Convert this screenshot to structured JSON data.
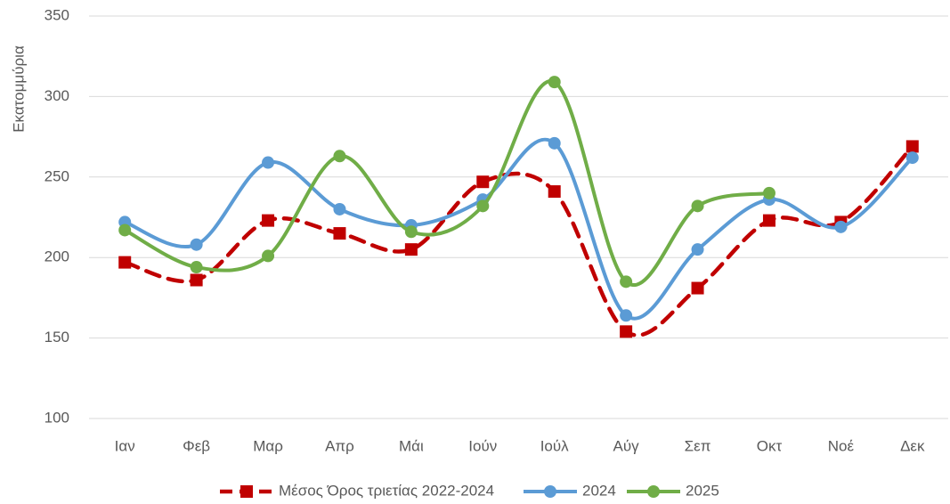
{
  "chart_data": {
    "type": "line",
    "smooth": true,
    "y_label": "Εκατομμύρια",
    "categories": [
      "Ιαν",
      "Φεβ",
      "Μαρ",
      "Απρ",
      "Μάι",
      "Ιούν",
      "Ιούλ",
      "Αύγ",
      "Σεπ",
      "Οκτ",
      "Νοέ",
      "Δεκ"
    ],
    "series": [
      {
        "name": "Μέσος Όρος τριετίας 2022-2024",
        "color": "#c00000",
        "dashed": true,
        "marker": "square",
        "values": [
          197,
          186,
          223,
          215,
          205,
          247,
          241,
          154,
          181,
          223,
          222,
          269
        ]
      },
      {
        "name": "2024",
        "color": "#5b9bd5",
        "dashed": false,
        "marker": "circle",
        "values": [
          222,
          208,
          259,
          230,
          220,
          236,
          271,
          164,
          205,
          236,
          219,
          262
        ]
      },
      {
        "name": "2025",
        "color": "#70ad47",
        "dashed": false,
        "marker": "circle",
        "values": [
          217,
          194,
          201,
          263,
          216,
          232,
          309,
          185,
          232,
          240,
          null,
          null
        ]
      }
    ],
    "ylim": [
      100,
      350
    ],
    "yticks": [
      100,
      150,
      200,
      250,
      300,
      350
    ],
    "grid": true,
    "legend": "bottom"
  }
}
